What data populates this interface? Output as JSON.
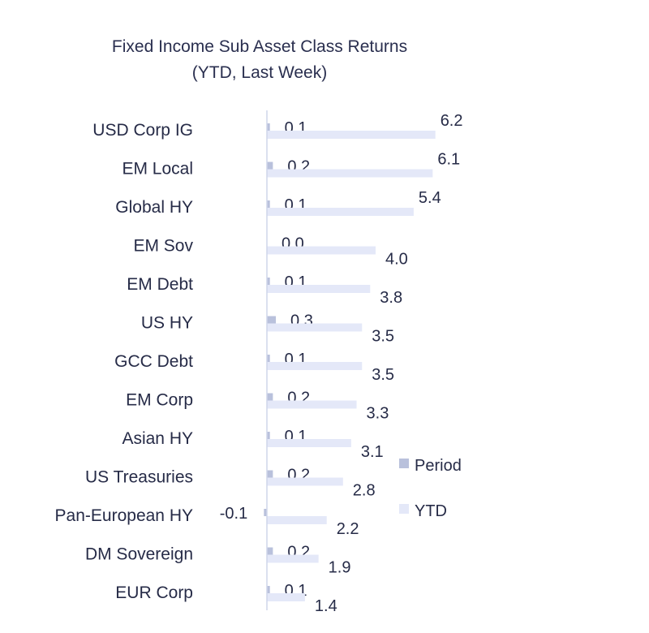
{
  "chart_data": {
    "type": "bar",
    "orientation": "horizontal",
    "title": "Fixed Income Sub Asset Class Returns",
    "subtitle": "(YTD, Last Week)",
    "categories": [
      "USD Corp IG",
      "EM Local",
      "Global HY",
      "EM Sov",
      "EM Debt",
      "US HY",
      "GCC Debt",
      "EM Corp",
      "Asian HY",
      "US Treasuries",
      "Pan-European HY",
      "DM Sovereign",
      "EUR Corp"
    ],
    "series": [
      {
        "name": "Period",
        "values": [
          0.1,
          0.2,
          0.1,
          0.0,
          0.1,
          0.3,
          0.1,
          0.2,
          0.1,
          0.2,
          -0.1,
          0.2,
          0.1
        ],
        "color": "#b9c1dc"
      },
      {
        "name": "YTD",
        "values": [
          6.2,
          6.1,
          5.4,
          4.0,
          3.8,
          3.5,
          3.5,
          3.3,
          3.1,
          2.8,
          2.2,
          1.9,
          1.4
        ],
        "color": "#e4e8f8"
      }
    ],
    "value_labels": {
      "Period": [
        "0.1",
        "0.2",
        "0.1",
        "0.0",
        "0.1",
        "0.3",
        "0.1",
        "0.2",
        "0.1",
        "0.2",
        "-0.1",
        "0.2",
        "0.1"
      ],
      "YTD": [
        "6.2",
        "6.1",
        "5.4",
        "4.0",
        "3.8",
        "3.5",
        "3.5",
        "3.3",
        "3.1",
        "2.8",
        "2.2",
        "1.9",
        "1.4"
      ]
    },
    "legend_position": "right",
    "grid": false
  }
}
